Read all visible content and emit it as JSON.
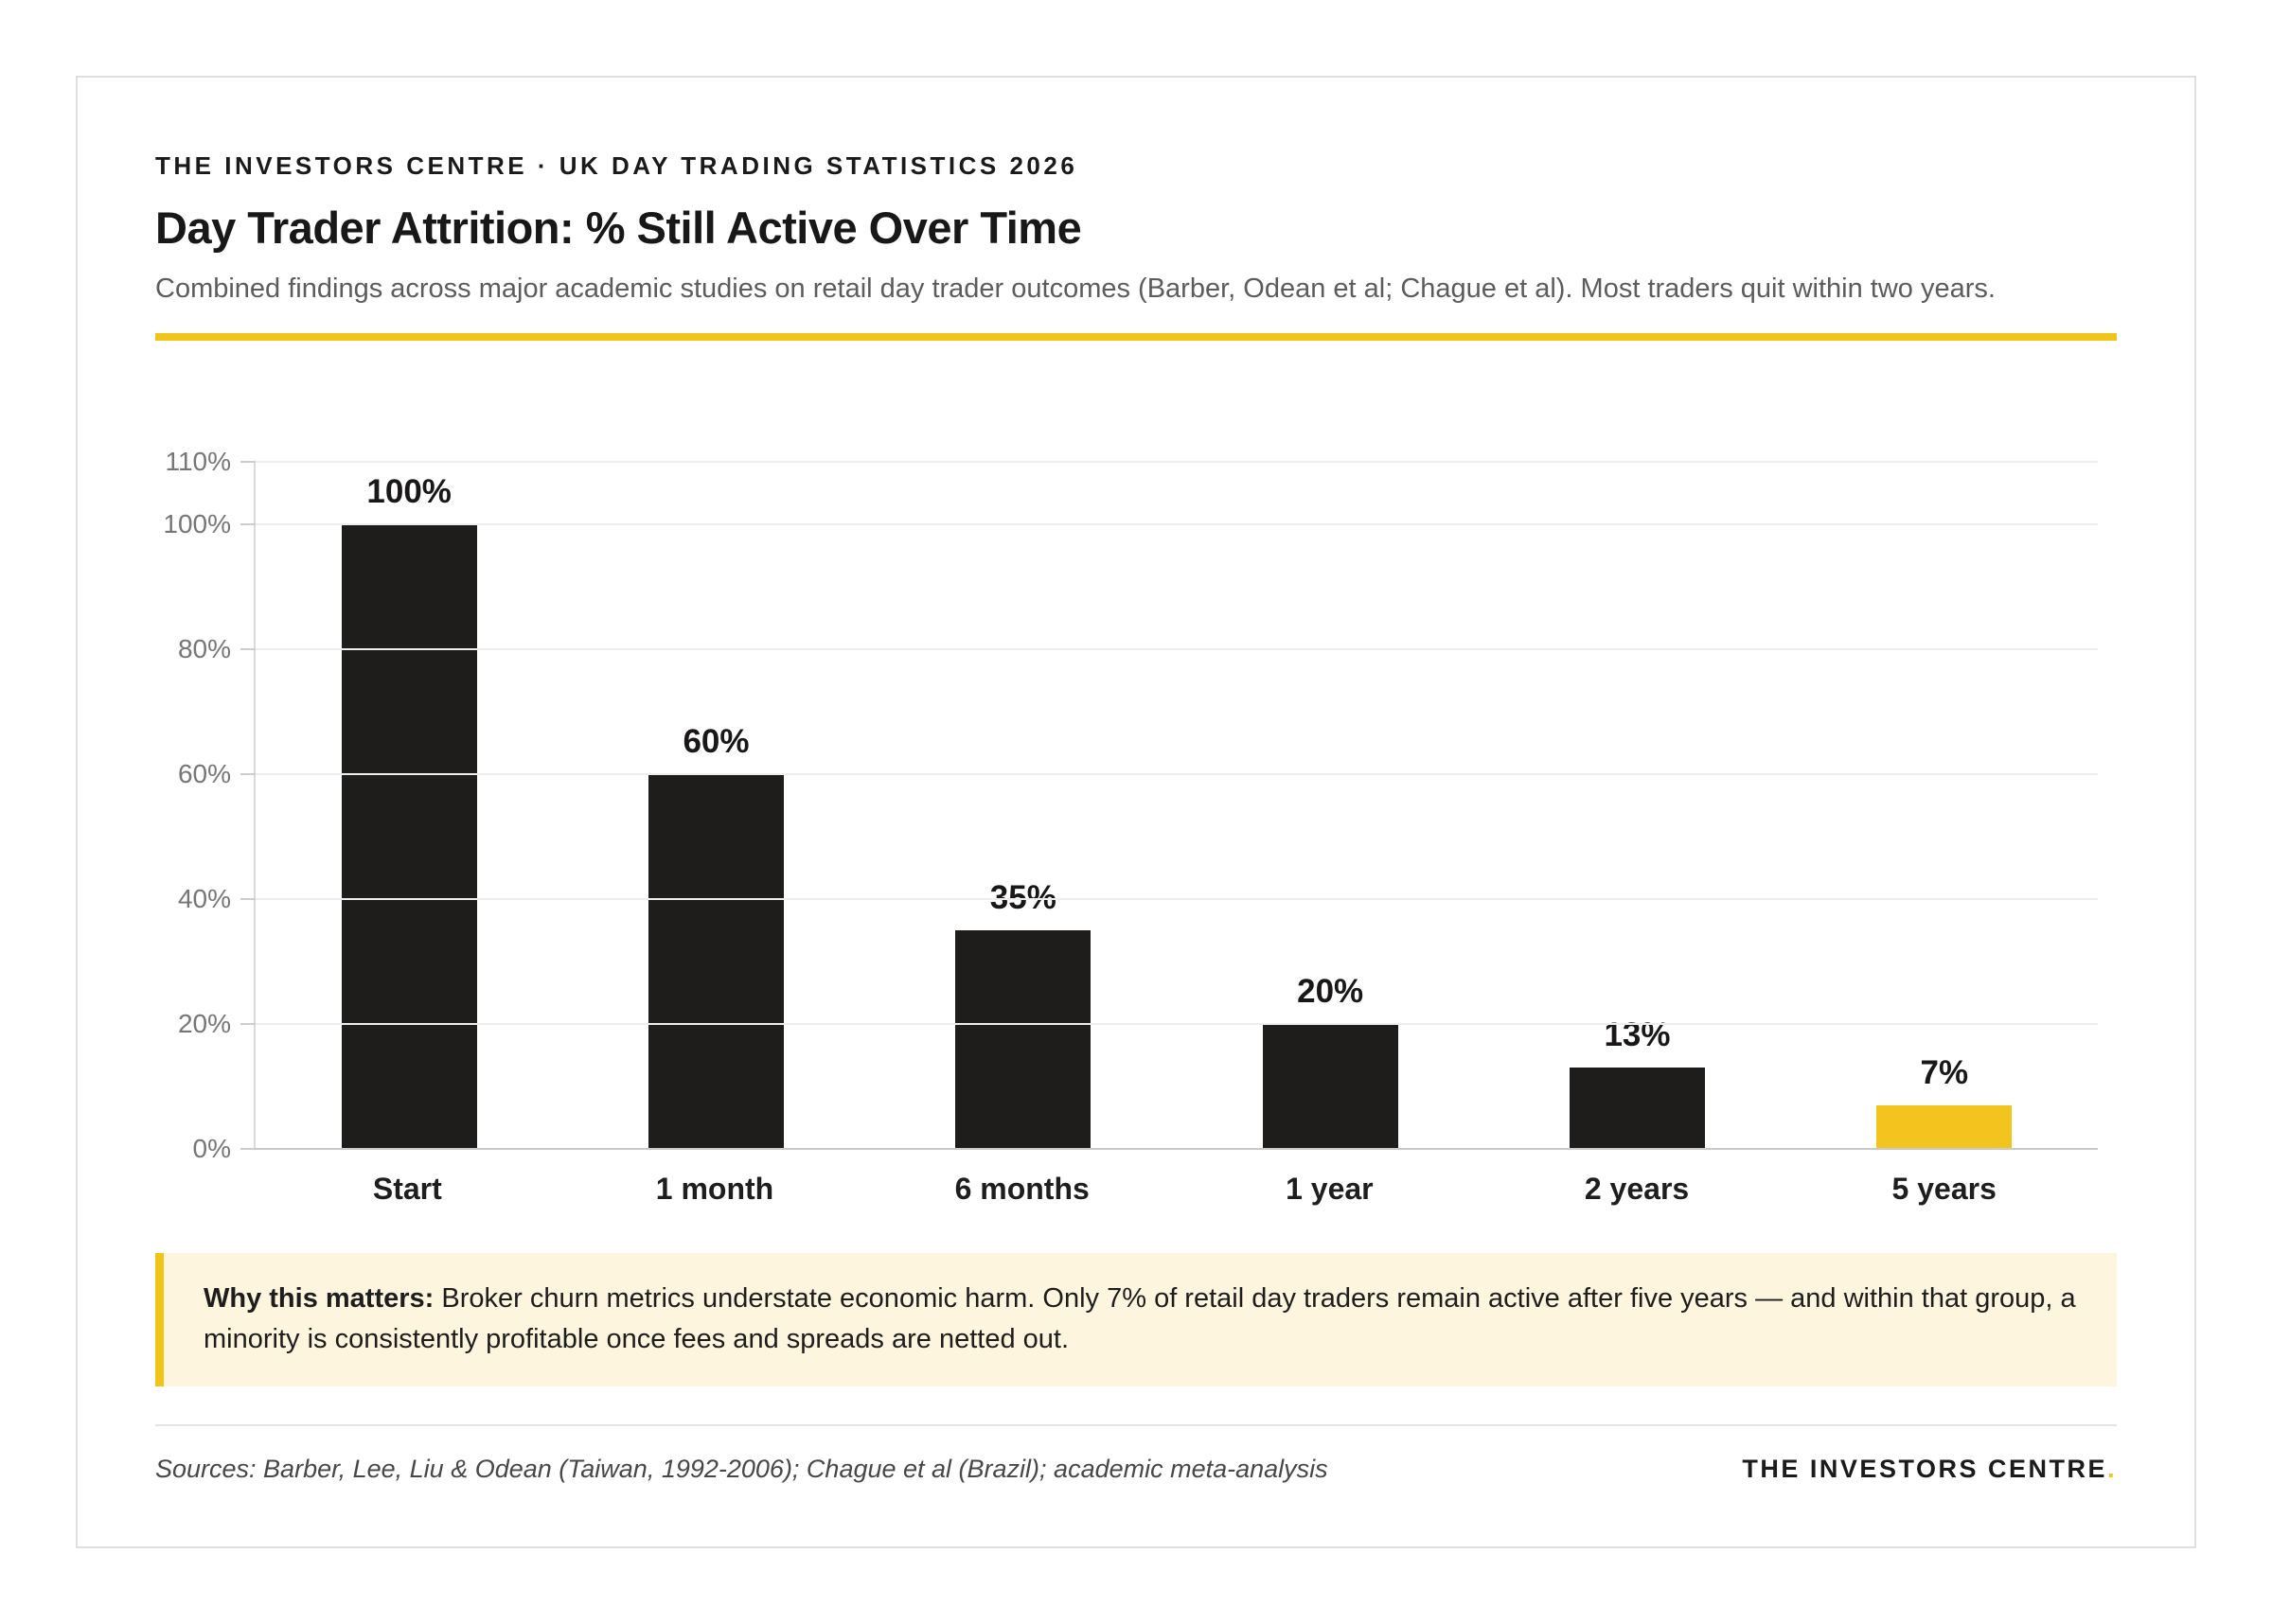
{
  "header": {
    "eyebrow": "THE INVESTORS CENTRE · UK DAY TRADING STATISTICS 2026",
    "title": "Day Trader Attrition: % Still Active Over Time",
    "subtitle": "Combined findings across major academic studies on retail day trader outcomes (Barber, Odean et al; Chague et al). Most traders quit within two years."
  },
  "chart_data": {
    "type": "bar",
    "title": "Day Trader Attrition: % Still Active Over Time",
    "categories": [
      "Start",
      "1 month",
      "6 months",
      "1 year",
      "2 years",
      "5 years"
    ],
    "values": [
      100,
      60,
      35,
      20,
      13,
      7
    ],
    "value_labels": [
      "100%",
      "60%",
      "35%",
      "20%",
      "13%",
      "7%"
    ],
    "xlabel": "",
    "ylabel": "",
    "ylim": [
      0,
      110
    ],
    "yticks": [
      0,
      20,
      40,
      60,
      80,
      100,
      110
    ],
    "ytick_labels": [
      "0%",
      "20%",
      "40%",
      "60%",
      "80%",
      "100%",
      "110%"
    ],
    "grid": true,
    "legend": false,
    "bar_colors": [
      "#1f1c1c",
      "#1f1c1c",
      "#1f1c1c",
      "#1f1c1c",
      "#1f1c1c",
      "#f2c41d"
    ],
    "highlight_index": 5
  },
  "callout": {
    "lead": "Why this matters:",
    "text": " Broker churn metrics understate economic harm. Only 7% of retail day traders remain active after five years — and within that group, a minority is consistently profitable once fees and spreads are netted out."
  },
  "footer": {
    "sources": "Sources: Barber, Lee, Liu & Odean (Taiwan, 1992-2006); Chague et al (Brazil); academic meta-analysis",
    "brand": "THE INVESTORS CENTRE",
    "brand_dot": "."
  },
  "colors": {
    "accent": "#f0c419",
    "bar": "#1f1c1c",
    "highlight_bar": "#f2c41d",
    "callout_bg": "#fdf5dd",
    "grid": "#eeeeee",
    "axis": "#d9d9d9",
    "tick_text": "#767676"
  }
}
